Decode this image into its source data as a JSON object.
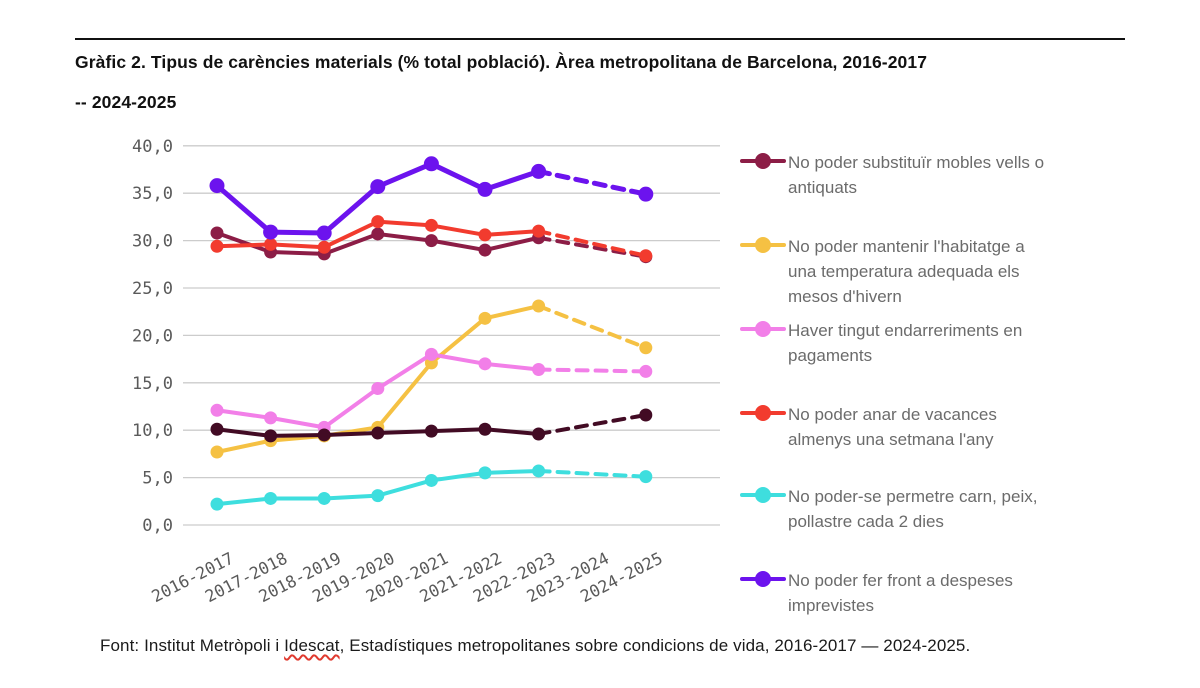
{
  "page": {
    "title_line1": "Gràfic 2. Tipus de carències materials (% total població). Àrea metropolitana de Barcelona, 2016-2017",
    "title_line2": "-- 2024-2025",
    "footer_prefix": "Font: Institut Metròpoli i ",
    "footer_flagged_word": "Idescat",
    "footer_suffix": ", Estadístiques metropolitanes sobre condicions de vida, 2016-2017 — 2024-2025."
  },
  "chart_data": {
    "type": "line",
    "title": "Tipus de carències materials (% total població), Àrea metropolitana de Barcelona",
    "xlabel": "",
    "ylabel": "% total població",
    "ylim": [
      0,
      40
    ],
    "grid": "horizontal",
    "legend_position": "right",
    "y_ticks": [
      "0,0",
      "5,0",
      "10,0",
      "15,0",
      "20,0",
      "25,0",
      "30,0",
      "35,0",
      "40,0"
    ],
    "categories": [
      "2016-2017",
      "2017-2018",
      "2018-2019",
      "2019-2020",
      "2020-2021",
      "2021-2022",
      "2022-2023",
      "2023-2024",
      "2024-2025"
    ],
    "dashed_note": "No data point at 2023-2024; segment from 2022-2023 to 2024-2025 is drawn dashed for every series",
    "series": [
      {
        "name": "No poder substituïr mobles vells o antiquats",
        "color": "#8c1d46",
        "in_legend": true,
        "values": [
          30.8,
          28.8,
          28.6,
          30.7,
          30.0,
          29.0,
          30.3,
          null,
          28.3
        ]
      },
      {
        "name": "No poder mantenir l'habitatge a una temperatura adequada els mesos d'hivern",
        "color": "#f5c143",
        "in_legend": true,
        "values": [
          7.7,
          8.9,
          9.4,
          10.3,
          17.1,
          21.8,
          23.1,
          null,
          18.7
        ]
      },
      {
        "name": "Haver tingut endarreriments en pagaments",
        "color": "#f27fe8",
        "in_legend": true,
        "values": [
          12.1,
          11.3,
          10.3,
          14.4,
          18.0,
          17.0,
          16.4,
          null,
          16.2
        ]
      },
      {
        "name": "No poder anar de vacances almenys una setmana l'any",
        "color": "#f23b2e",
        "in_legend": true,
        "values": [
          29.4,
          29.6,
          29.3,
          32.0,
          31.6,
          30.6,
          31.0,
          null,
          28.4
        ]
      },
      {
        "name": "No poder-se permetre carn, peix, pollastre cada 2 dies",
        "color": "#3edede",
        "in_legend": true,
        "values": [
          2.2,
          2.8,
          2.8,
          3.1,
          4.7,
          5.5,
          5.7,
          null,
          5.1
        ]
      },
      {
        "name": "No poder fer front a despeses imprevistes",
        "color": "#6c13ee",
        "in_legend": true,
        "values": [
          35.8,
          30.9,
          30.8,
          35.7,
          38.1,
          35.4,
          37.3,
          null,
          34.9
        ]
      },
      {
        "name": "",
        "color": "#420b24",
        "in_legend": false,
        "values": [
          10.1,
          9.4,
          9.5,
          9.7,
          9.9,
          10.1,
          9.6,
          null,
          11.6
        ]
      }
    ],
    "style": {
      "gridline_color": "#cccccc",
      "tick_label_color": "#5a5a5a",
      "legend_text_color": "#6b6b6b"
    }
  }
}
